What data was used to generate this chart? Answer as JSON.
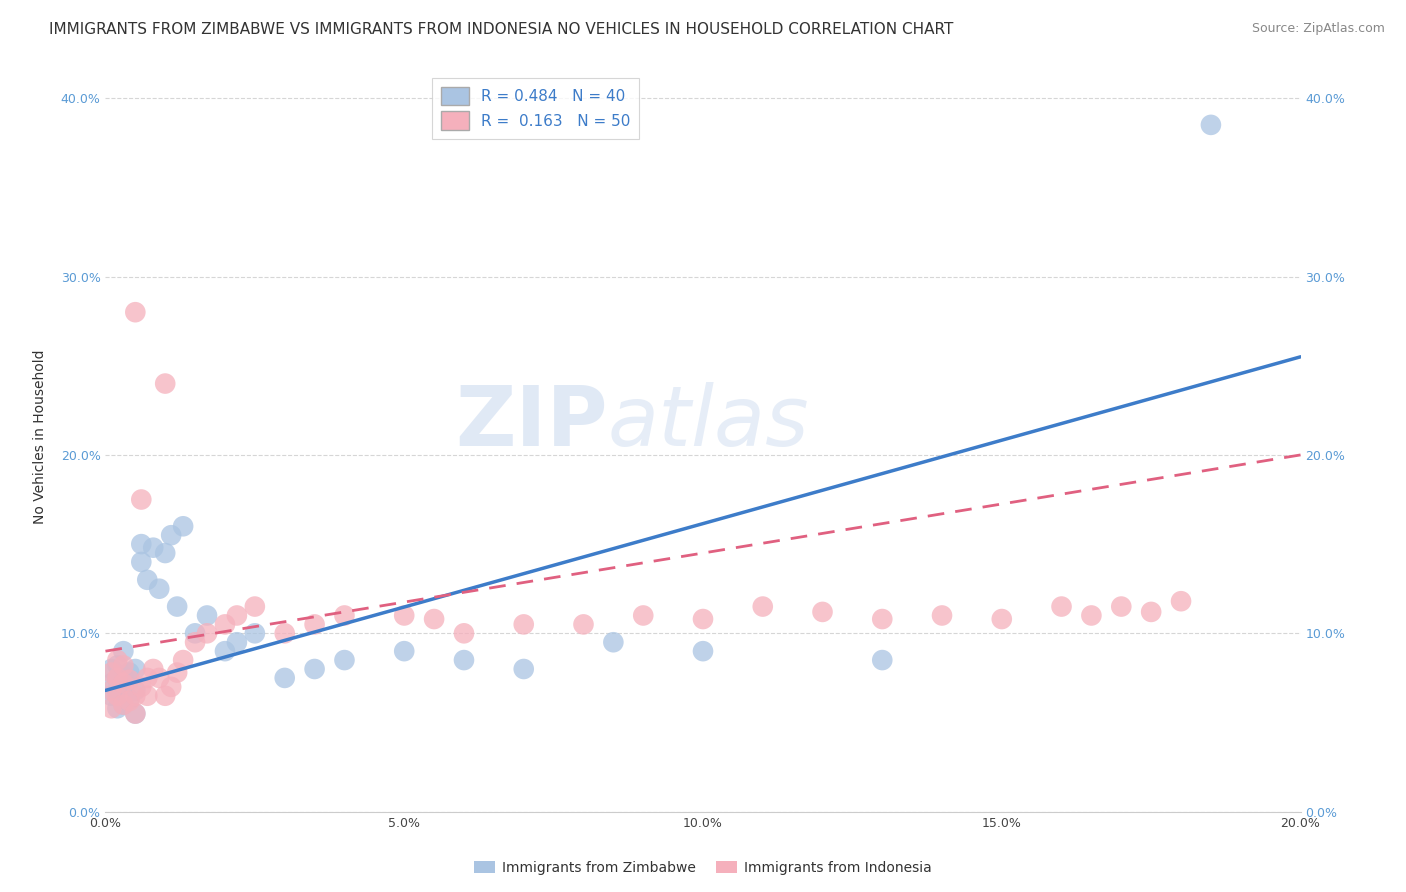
{
  "title": "IMMIGRANTS FROM ZIMBABWE VS IMMIGRANTS FROM INDONESIA NO VEHICLES IN HOUSEHOLD CORRELATION CHART",
  "source": "Source: ZipAtlas.com",
  "xlabel_zimbabwe": "Immigrants from Zimbabwe",
  "xlabel_indonesia": "Immigrants from Indonesia",
  "ylabel": "No Vehicles in Household",
  "xlim": [
    0.0,
    0.2
  ],
  "ylim": [
    0.0,
    0.42
  ],
  "yticks": [
    0.0,
    0.1,
    0.2,
    0.3,
    0.4
  ],
  "xticks": [
    0.0,
    0.05,
    0.1,
    0.15,
    0.2
  ],
  "xtick_labels": [
    "0.0%",
    "5.0%",
    "10.0%",
    "15.0%",
    "20.0%"
  ],
  "ytick_labels": [
    "0.0%",
    "10.0%",
    "20.0%",
    "30.0%",
    "40.0%"
  ],
  "r_zimbabwe": 0.484,
  "n_zimbabwe": 40,
  "r_indonesia": 0.163,
  "n_indonesia": 50,
  "color_zimbabwe": "#aac4e2",
  "color_indonesia": "#f5b0bc",
  "line_color_zimbabwe": "#3d7cc9",
  "line_color_indonesia": "#e06080",
  "watermark_zip": "ZIP",
  "watermark_atlas": "atlas",
  "background_color": "#ffffff",
  "grid_color": "#cccccc",
  "title_fontsize": 11,
  "axis_label_fontsize": 10,
  "tick_fontsize": 9,
  "legend_fontsize": 11,
  "source_fontsize": 9,
  "zimbabwe_x": [
    0.001,
    0.001,
    0.001,
    0.002,
    0.002,
    0.002,
    0.002,
    0.003,
    0.003,
    0.003,
    0.003,
    0.004,
    0.004,
    0.005,
    0.005,
    0.005,
    0.006,
    0.006,
    0.007,
    0.008,
    0.009,
    0.01,
    0.011,
    0.012,
    0.013,
    0.015,
    0.017,
    0.02,
    0.022,
    0.025,
    0.03,
    0.035,
    0.04,
    0.05,
    0.06,
    0.07,
    0.085,
    0.1,
    0.13,
    0.185
  ],
  "zimbabwe_y": [
    0.065,
    0.072,
    0.08,
    0.058,
    0.068,
    0.074,
    0.082,
    0.06,
    0.07,
    0.076,
    0.09,
    0.063,
    0.078,
    0.055,
    0.068,
    0.08,
    0.15,
    0.14,
    0.13,
    0.148,
    0.125,
    0.145,
    0.155,
    0.115,
    0.16,
    0.1,
    0.11,
    0.09,
    0.095,
    0.1,
    0.075,
    0.08,
    0.085,
    0.09,
    0.085,
    0.08,
    0.095,
    0.09,
    0.085,
    0.385
  ],
  "indonesia_x": [
    0.001,
    0.001,
    0.001,
    0.002,
    0.002,
    0.002,
    0.003,
    0.003,
    0.003,
    0.004,
    0.004,
    0.005,
    0.005,
    0.005,
    0.006,
    0.006,
    0.007,
    0.007,
    0.008,
    0.009,
    0.01,
    0.01,
    0.011,
    0.012,
    0.013,
    0.015,
    0.017,
    0.02,
    0.022,
    0.025,
    0.03,
    0.035,
    0.04,
    0.05,
    0.055,
    0.06,
    0.07,
    0.08,
    0.09,
    0.1,
    0.11,
    0.12,
    0.13,
    0.14,
    0.15,
    0.16,
    0.165,
    0.17,
    0.175,
    0.18
  ],
  "indonesia_y": [
    0.058,
    0.068,
    0.078,
    0.065,
    0.075,
    0.085,
    0.06,
    0.072,
    0.082,
    0.062,
    0.074,
    0.055,
    0.065,
    0.28,
    0.07,
    0.175,
    0.065,
    0.075,
    0.08,
    0.075,
    0.065,
    0.24,
    0.07,
    0.078,
    0.085,
    0.095,
    0.1,
    0.105,
    0.11,
    0.115,
    0.1,
    0.105,
    0.11,
    0.11,
    0.108,
    0.1,
    0.105,
    0.105,
    0.11,
    0.108,
    0.115,
    0.112,
    0.108,
    0.11,
    0.108,
    0.115,
    0.11,
    0.115,
    0.112,
    0.118
  ]
}
